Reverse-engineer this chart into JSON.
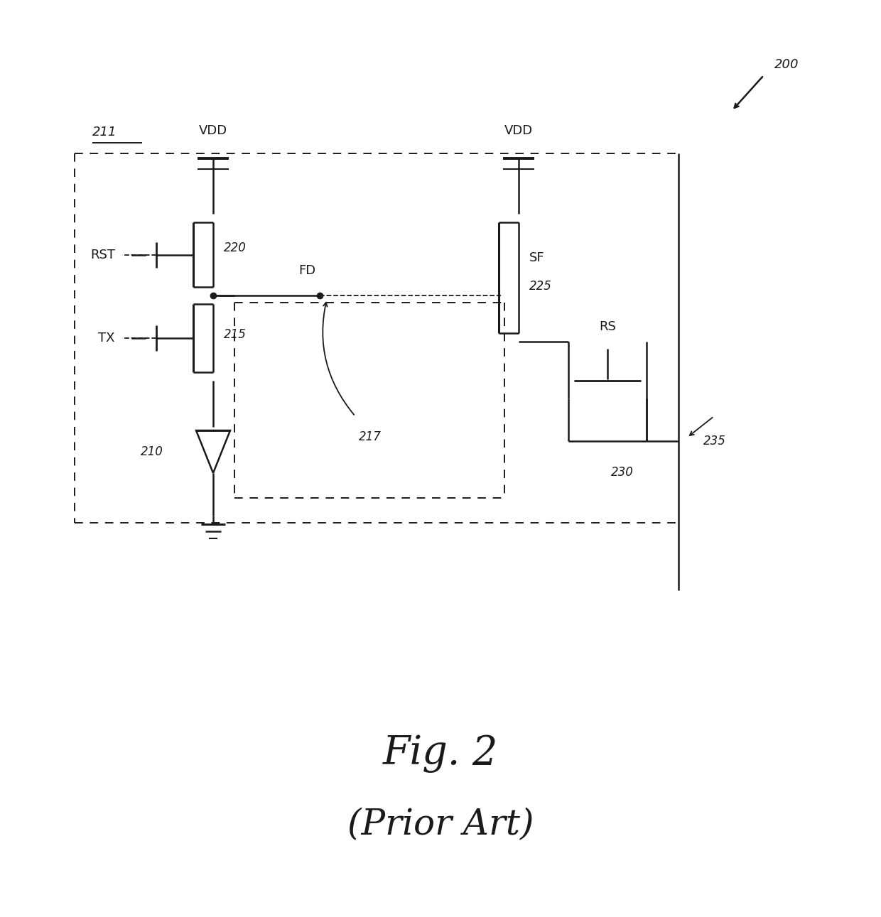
{
  "fig_width": 12.4,
  "fig_height": 12.91,
  "bg_color": "#ffffff",
  "line_color": "#1a1a1a",
  "dashed_color": "#444444",
  "title": "Fig. 2",
  "subtitle": "(Prior Art)",
  "label_200": "200",
  "label_211": "211",
  "label_210": "210",
  "label_215": "215",
  "label_217": "217",
  "label_220": "220",
  "label_225": "225",
  "label_230": "230",
  "label_235": "235",
  "label_VDD1": "VDD",
  "label_VDD2": "VDD",
  "label_RST": "RST",
  "label_TX": "TX",
  "label_FD": "FD",
  "label_SF": "SF",
  "label_RS": "RS"
}
